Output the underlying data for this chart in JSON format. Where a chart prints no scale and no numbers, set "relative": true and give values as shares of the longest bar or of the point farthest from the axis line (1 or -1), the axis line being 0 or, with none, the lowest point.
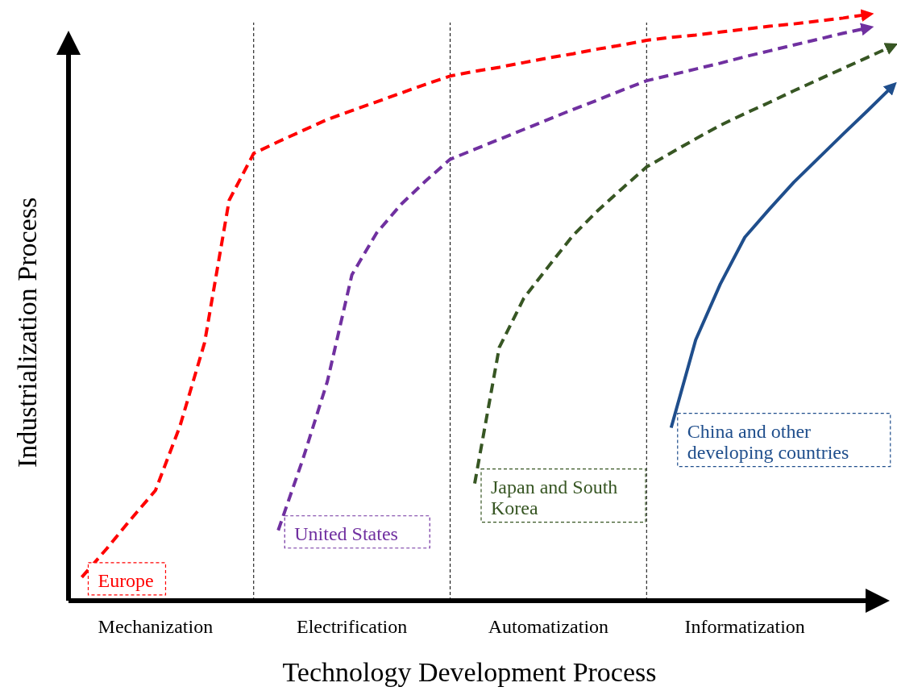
{
  "chart_data": {
    "type": "line",
    "relative": true,
    "xlabel": "Technology Development Process",
    "ylabel": "Industrialization Process",
    "categories": [
      null,
      null,
      null,
      null,
      "Mechanization",
      null,
      null,
      null,
      null,
      null,
      null,
      null,
      "Electrification",
      null,
      null,
      null,
      null,
      null,
      null,
      null,
      "Automatization",
      null,
      null,
      null,
      null,
      null,
      null,
      null,
      "Informatization",
      null,
      null,
      null,
      null,
      null,
      null
    ],
    "grid": "x",
    "legend": false,
    "marker": "none",
    "series": [
      {
        "name": "Europe",
        "color": "#ff0000",
        "line_style": "dashed",
        "values": [
          null,
          0.04,
          0.088,
          0.139,
          0.188,
          0.298,
          0.44,
          0.683,
          0.763,
          0.783,
          0.802,
          0.821,
          0.836,
          0.851,
          0.866,
          0.881,
          0.895,
          0.903,
          0.91,
          0.918,
          0.926,
          0.933,
          0.941,
          0.948,
          0.956,
          0.961,
          0.965,
          0.97,
          0.975,
          0.98,
          0.984,
          0.989,
          0.994,
          1.0,
          null
        ]
      },
      {
        "name": "United States",
        "color": "#7030a0",
        "line_style": "dashed",
        "values": [
          null,
          null,
          null,
          null,
          null,
          null,
          null,
          null,
          null,
          0.12,
          0.241,
          0.374,
          0.556,
          0.627,
          0.676,
          0.716,
          0.753,
          0.77,
          0.787,
          0.804,
          0.821,
          0.838,
          0.854,
          0.871,
          0.887,
          0.897,
          0.907,
          0.917,
          0.928,
          0.938,
          0.948,
          0.958,
          0.968,
          0.977,
          null
        ]
      },
      {
        "name": "Japan and South Korea",
        "color": "#375623",
        "line_style": "dashed",
        "values": [
          null,
          null,
          null,
          null,
          null,
          null,
          null,
          null,
          null,
          null,
          null,
          null,
          null,
          null,
          null,
          null,
          null,
          0.2,
          0.432,
          0.516,
          0.57,
          0.623,
          0.665,
          0.703,
          0.74,
          0.764,
          0.788,
          0.811,
          0.831,
          0.85,
          0.87,
          0.889,
          0.908,
          0.927,
          0.946
        ]
      },
      {
        "name": "China and other developing countries",
        "color": "#1f4e8c",
        "line_style": "solid",
        "values": [
          null,
          null,
          null,
          null,
          null,
          null,
          null,
          null,
          null,
          null,
          null,
          null,
          null,
          null,
          null,
          null,
          null,
          null,
          null,
          null,
          null,
          null,
          null,
          null,
          null,
          0.295,
          0.445,
          0.54,
          0.62,
          0.668,
          0.714,
          0.755,
          0.796,
          0.836,
          0.877
        ]
      }
    ]
  }
}
